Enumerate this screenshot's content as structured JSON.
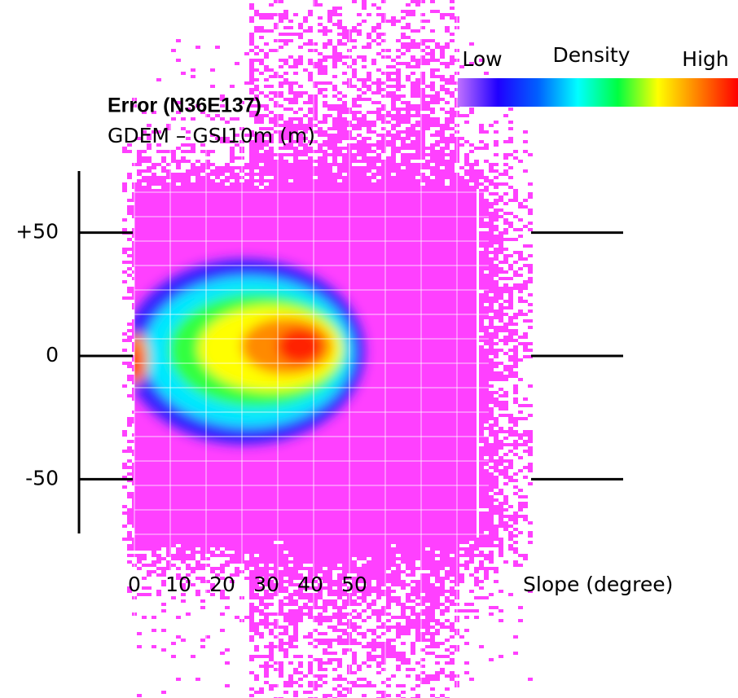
{
  "chart_data": {
    "type": "density",
    "title": "Error (N36E137)",
    "subtitle": "GDEM – GSI10m (m)",
    "x_label": "Slope (degree)",
    "xlim": [
      0,
      50
    ],
    "xticks": [
      0,
      10,
      20,
      30,
      40,
      50
    ],
    "ylim": [
      -72,
      75
    ],
    "yticks": [
      {
        "value": 50,
        "label": "+50"
      },
      0,
      -50
    ],
    "colorbar": {
      "title": "Density",
      "low_label": "Low",
      "high_label": "High",
      "colors": [
        "#c070ff",
        "#2000ff",
        "#0060ff",
        "#00ffff",
        "#00ff40",
        "#ffff00",
        "#ff8000",
        "#ff0000"
      ]
    }
  }
}
